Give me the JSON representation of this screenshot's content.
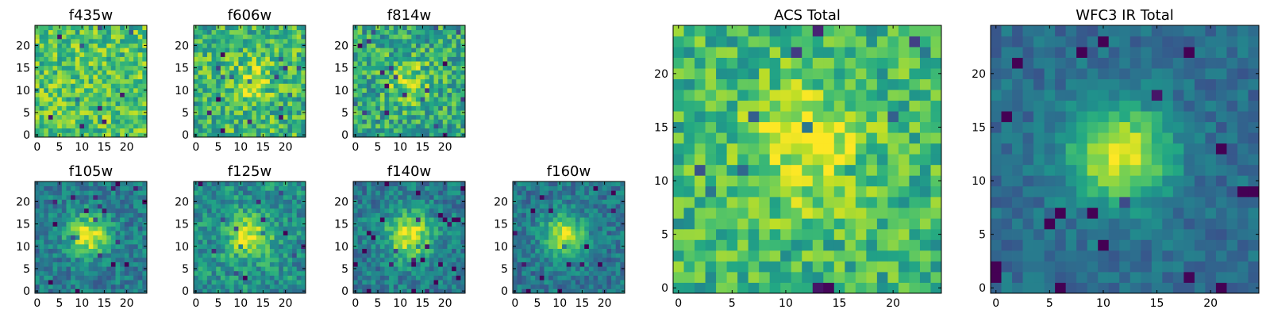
{
  "chart_data": [
    {
      "type": "heatmap",
      "title": "f435w",
      "grid_size": 25,
      "colormap": "viridis",
      "x_ticks": [
        "0",
        "5",
        "10",
        "15",
        "20"
      ],
      "y_ticks": [
        "0",
        "5",
        "10",
        "15",
        "20"
      ],
      "xlim": [
        -0.5,
        24.5
      ],
      "ylim": [
        -0.5,
        24.5
      ],
      "pattern": "noise",
      "peak": [
        12,
        12
      ],
      "peak_strength": 0.0,
      "sigma": 4,
      "base": 0.72,
      "noise": 0.22,
      "seed": 11
    },
    {
      "type": "heatmap",
      "title": "f606w",
      "grid_size": 25,
      "colormap": "viridis",
      "x_ticks": [
        "0",
        "5",
        "10",
        "15",
        "20"
      ],
      "y_ticks": [
        "0",
        "5",
        "10",
        "15",
        "20"
      ],
      "xlim": [
        -0.5,
        24.5
      ],
      "ylim": [
        -0.5,
        24.5
      ],
      "pattern": "faint-source",
      "peak": [
        12,
        12
      ],
      "peak_strength": 0.22,
      "sigma": 3.5,
      "base": 0.66,
      "noise": 0.24,
      "seed": 23
    },
    {
      "type": "heatmap",
      "title": "f814w",
      "grid_size": 25,
      "colormap": "viridis",
      "x_ticks": [
        "0",
        "5",
        "10",
        "15",
        "20"
      ],
      "y_ticks": [
        "0",
        "5",
        "10",
        "15",
        "20"
      ],
      "xlim": [
        -0.5,
        24.5
      ],
      "ylim": [
        -0.5,
        24.5
      ],
      "pattern": "faint-source",
      "peak": [
        12,
        12
      ],
      "peak_strength": 0.25,
      "sigma": 3.5,
      "base": 0.6,
      "noise": 0.24,
      "seed": 37
    },
    {
      "type": "heatmap",
      "title": "f105w",
      "grid_size": 25,
      "colormap": "viridis",
      "x_ticks": [
        "0",
        "5",
        "10",
        "15",
        "20"
      ],
      "y_ticks": [
        "0",
        "5",
        "10",
        "15",
        "20"
      ],
      "xlim": [
        -0.5,
        24.5
      ],
      "ylim": [
        -0.5,
        24.5
      ],
      "pattern": "source",
      "peak": [
        11.5,
        12.5
      ],
      "peak_strength": 0.55,
      "sigma": 3.2,
      "base": 0.42,
      "noise": 0.16,
      "seed": 41
    },
    {
      "type": "heatmap",
      "title": "f125w",
      "grid_size": 25,
      "colormap": "viridis",
      "x_ticks": [
        "0",
        "5",
        "10",
        "15",
        "20"
      ],
      "y_ticks": [
        "0",
        "5",
        "10",
        "15",
        "20"
      ],
      "xlim": [
        -0.5,
        24.5
      ],
      "ylim": [
        -0.5,
        24.5
      ],
      "pattern": "source",
      "peak": [
        12,
        12
      ],
      "peak_strength": 0.45,
      "sigma": 3.4,
      "base": 0.5,
      "noise": 0.18,
      "seed": 53
    },
    {
      "type": "heatmap",
      "title": "f140w",
      "grid_size": 25,
      "colormap": "viridis",
      "x_ticks": [
        "0",
        "5",
        "10",
        "15",
        "20"
      ],
      "y_ticks": [
        "0",
        "5",
        "10",
        "15",
        "20"
      ],
      "xlim": [
        -0.5,
        24.5
      ],
      "ylim": [
        -0.5,
        24.5
      ],
      "pattern": "source",
      "peak": [
        12,
        12.5
      ],
      "peak_strength": 0.55,
      "sigma": 3.6,
      "base": 0.42,
      "noise": 0.16,
      "seed": 67
    },
    {
      "type": "heatmap",
      "title": "f160w",
      "grid_size": 25,
      "colormap": "viridis",
      "x_ticks": [
        "0",
        "5",
        "10",
        "15",
        "20"
      ],
      "y_ticks": [
        "0",
        "5",
        "10",
        "15",
        "20"
      ],
      "xlim": [
        -0.5,
        24.5
      ],
      "ylim": [
        -0.5,
        24.5
      ],
      "pattern": "source",
      "peak": [
        11,
        12.5
      ],
      "peak_strength": 0.55,
      "sigma": 3.2,
      "base": 0.4,
      "noise": 0.15,
      "seed": 79
    },
    {
      "type": "heatmap",
      "title": "ACS Total",
      "grid_size": 25,
      "colormap": "viridis",
      "x_ticks": [
        "0",
        "5",
        "10",
        "15",
        "20"
      ],
      "y_ticks": [
        "0",
        "5",
        "10",
        "15",
        "20"
      ],
      "xlim": [
        -0.5,
        24.5
      ],
      "ylim": [
        -0.5,
        24.5
      ],
      "pattern": "faint-source",
      "peak": [
        12,
        13
      ],
      "peak_strength": 0.3,
      "sigma": 4,
      "base": 0.66,
      "noise": 0.2,
      "seed": 97
    },
    {
      "type": "heatmap",
      "title": "WFC3 IR Total",
      "grid_size": 25,
      "colormap": "viridis",
      "x_ticks": [
        "0",
        "5",
        "10",
        "15",
        "20"
      ],
      "y_ticks": [
        "0",
        "5",
        "10",
        "15",
        "20"
      ],
      "xlim": [
        -0.5,
        24.5
      ],
      "ylim": [
        -0.5,
        24.5
      ],
      "pattern": "source",
      "peak": [
        11.5,
        12.5
      ],
      "peak_strength": 0.6,
      "sigma": 3.3,
      "base": 0.36,
      "noise": 0.1,
      "seed": 101
    }
  ]
}
